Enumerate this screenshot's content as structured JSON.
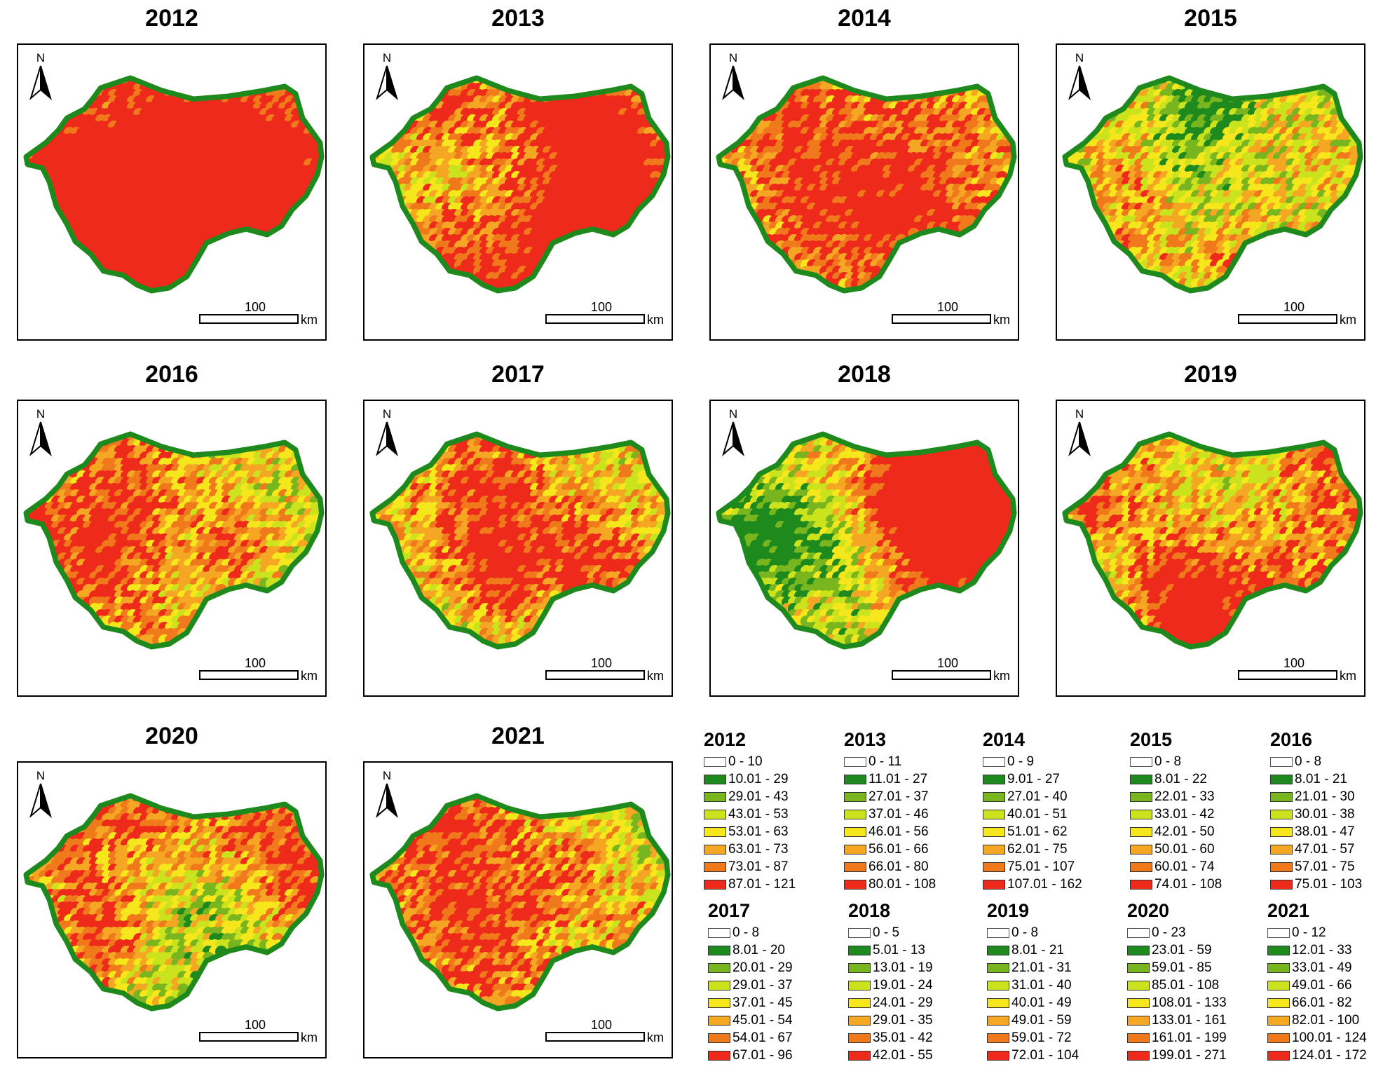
{
  "maps": [
    {
      "year": "2012",
      "seed": 11,
      "redBias": 0.25
    },
    {
      "year": "2013",
      "seed": 23,
      "redBias": 0.15
    },
    {
      "year": "2014",
      "seed": 37,
      "redBias": 0.0
    },
    {
      "year": "2015",
      "seed": 41,
      "redBias": -0.05
    },
    {
      "year": "2016",
      "seed": 53,
      "redBias": 0.05
    },
    {
      "year": "2017",
      "seed": 67,
      "redBias": 0.05
    },
    {
      "year": "2018",
      "seed": 71,
      "redBias": 0.1
    },
    {
      "year": "2019",
      "seed": 83,
      "redBias": 0.1
    },
    {
      "year": "2020",
      "seed": 97,
      "redBias": 0.05
    },
    {
      "year": "2021",
      "seed": 109,
      "redBias": 0.1
    }
  ],
  "map_labels": {
    "north": "N",
    "scale_value": "100",
    "scale_unit": "km"
  },
  "class_colors": [
    "#ffffff",
    "#1e8a1e",
    "#78b51e",
    "#cbe31c",
    "#f6e61c",
    "#f5a622",
    "#f0791c",
    "#ee2a1a"
  ],
  "legends": [
    {
      "year": "2012",
      "classes": [
        "0 - 10",
        "10.01 - 29",
        "29.01 - 43",
        "43.01 - 53",
        "53.01 - 63",
        "63.01 - 73",
        "73.01 - 87",
        "87.01 - 121"
      ]
    },
    {
      "year": "2013",
      "classes": [
        "0 - 11",
        "11.01 - 27",
        "27.01 - 37",
        "37.01 - 46",
        "46.01 - 56",
        "56.01 - 66",
        "66.01 - 80",
        "80.01 - 108"
      ]
    },
    {
      "year": "2014",
      "classes": [
        "0 - 9",
        "9.01 - 27",
        "27.01 - 40",
        "40.01 - 51",
        "51.01 - 62",
        "62.01 - 75",
        "75.01 - 107",
        "107.01 - 162"
      ]
    },
    {
      "year": "2015",
      "classes": [
        "0 - 8",
        "8.01 - 22",
        "22.01 - 33",
        "33.01 - 42",
        "42.01 - 50",
        "50.01 - 60",
        "60.01 - 74",
        "74.01 - 108"
      ]
    },
    {
      "year": "2016",
      "classes": [
        "0 - 8",
        "8.01 - 21",
        "21.01 - 30",
        "30.01 - 38",
        "38.01 - 47",
        "47.01 - 57",
        "57.01 - 75",
        "75.01 - 103"
      ]
    },
    {
      "year": "2017",
      "classes": [
        "0 - 8",
        "8.01 - 20",
        "20.01 - 29",
        "29.01 - 37",
        "37.01 - 45",
        "45.01 - 54",
        "54.01 - 67",
        "67.01 - 96"
      ]
    },
    {
      "year": "2018",
      "classes": [
        "0 - 5",
        "5.01 - 13",
        "13.01 - 19",
        "19.01 - 24",
        "24.01 - 29",
        "29.01 - 35",
        "35.01 - 42",
        "42.01 - 55"
      ]
    },
    {
      "year": "2019",
      "classes": [
        "0 - 8",
        "8.01 - 21",
        "21.01 - 31",
        "31.01 - 40",
        "40.01 - 49",
        "49.01 - 59",
        "59.01 - 72",
        "72.01 - 104"
      ]
    },
    {
      "year": "2020",
      "classes": [
        "0 - 23",
        "23.01 - 59",
        "59.01 - 85",
        "85.01 - 108",
        "108.01 - 133",
        "133.01 - 161",
        "161.01 - 199",
        "199.01 - 271"
      ]
    },
    {
      "year": "2021",
      "classes": [
        "0 - 12",
        "12.01 - 33",
        "33.01 - 49",
        "49.01 - 66",
        "66.01 - 82",
        "82.01 - 100",
        "100.01 - 124",
        "124.01 - 172"
      ]
    }
  ]
}
